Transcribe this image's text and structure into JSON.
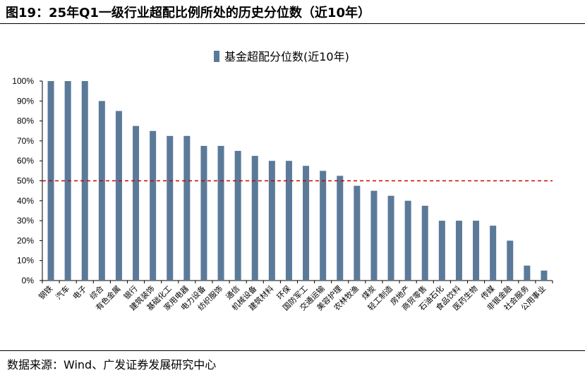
{
  "title": "图19：25年Q1一级行业超配比例所处的历史分位数（近10年）",
  "source": "数据来源：Wind、广发证券发展研究中心",
  "chart_data": {
    "type": "bar",
    "legend": {
      "label": "基金超配分位数(近10年)",
      "position": "top-center"
    },
    "categories": [
      "钢铁",
      "汽车",
      "电子",
      "综合",
      "有色金属",
      "银行",
      "建筑装饰",
      "基础化工",
      "家用电器",
      "电力设备",
      "纺织服饰",
      "通信",
      "机械设备",
      "建筑材料",
      "环保",
      "国防军工",
      "交通运输",
      "美容护理",
      "农林牧渔",
      "煤炭",
      "轻工制造",
      "房地产",
      "商贸零售",
      "石油石化",
      "食品饮料",
      "医药生物",
      "传媒",
      "非银金融",
      "社会服务",
      "公用事业"
    ],
    "values": [
      100,
      100,
      100,
      90,
      85,
      77.5,
      75,
      72.5,
      72.5,
      67.5,
      67.5,
      65,
      62.5,
      60,
      60,
      57.5,
      55,
      52.5,
      47.5,
      45,
      42.5,
      40,
      37.5,
      30,
      30,
      30,
      27.5,
      20,
      7.5,
      5
    ],
    "yticks": [
      "0%",
      "10%",
      "20%",
      "30%",
      "40%",
      "50%",
      "60%",
      "70%",
      "80%",
      "90%",
      "100%"
    ],
    "ylim": [
      0,
      100
    ],
    "reference_line": {
      "value": 50,
      "style": "dashed"
    },
    "colors": {
      "bar": "#5B7A99",
      "reference_line": "#CC0000"
    },
    "grid": false
  }
}
